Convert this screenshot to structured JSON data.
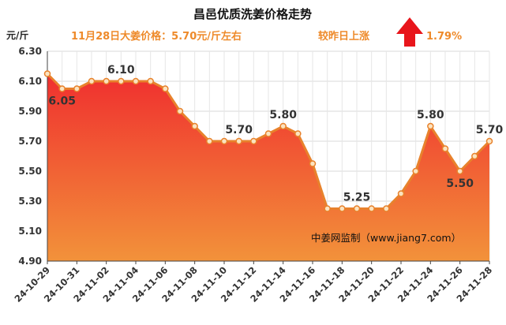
{
  "title": "昌邑优质洗姜价格走势",
  "subtitle": {
    "price_text": "11月28日大姜价格：5.70元/斤左右",
    "change_label": "较昨日上涨",
    "change_value": "1.79%"
  },
  "watermark": "中姜网监制（www.jiang7.com）",
  "colors": {
    "line": "#e8822c",
    "marker_fill": "#fbe3c0",
    "area_top": "#f02f2f",
    "area_bottom": "#f2923a",
    "info_text": "#ee8a2a",
    "arrow": "#e8151b"
  },
  "chart_data": {
    "type": "area",
    "ylabel": "元/斤",
    "ylim": [
      4.9,
      6.3
    ],
    "yticks": [
      "6.30",
      "6.10",
      "5.90",
      "5.70",
      "5.50",
      "5.30",
      "5.10",
      "4.90"
    ],
    "grid": true,
    "x": [
      "24-10-29",
      "24-10-30",
      "24-10-31",
      "24-11-01",
      "24-11-02",
      "24-11-03",
      "24-11-04",
      "24-11-05",
      "24-11-06",
      "24-11-07",
      "24-11-08",
      "24-11-09",
      "24-11-10",
      "24-11-11",
      "24-11-12",
      "24-11-13",
      "24-11-14",
      "24-11-15",
      "24-11-16",
      "24-11-17",
      "24-11-18",
      "24-11-19",
      "24-11-20",
      "24-11-21",
      "24-11-22",
      "24-11-23",
      "24-11-24",
      "24-11-25",
      "24-11-26",
      "24-11-27",
      "24-11-28"
    ],
    "xtick_labels": [
      "24-10-29",
      "24-10-31",
      "24-11-02",
      "24-11-04",
      "24-11-06",
      "24-11-08",
      "24-11-10",
      "24-11-12",
      "24-11-14",
      "24-11-16",
      "24-11-18",
      "24-11-20",
      "24-11-22",
      "24-11-24",
      "24-11-26",
      "24-11-28"
    ],
    "values": [
      6.15,
      6.05,
      6.05,
      6.1,
      6.1,
      6.1,
      6.1,
      6.1,
      6.05,
      5.9,
      5.8,
      5.7,
      5.7,
      5.7,
      5.7,
      5.75,
      5.8,
      5.75,
      5.55,
      5.25,
      5.25,
      5.25,
      5.25,
      5.25,
      5.35,
      5.5,
      5.8,
      5.65,
      5.5,
      5.6,
      5.7
    ],
    "data_labels": [
      {
        "index": 1,
        "text": "6.05",
        "pos": "below"
      },
      {
        "index": 5,
        "text": "6.10",
        "pos": "above"
      },
      {
        "index": 13,
        "text": "5.70",
        "pos": "above"
      },
      {
        "index": 16,
        "text": "5.80",
        "pos": "above"
      },
      {
        "index": 21,
        "text": "5.25",
        "pos": "above"
      },
      {
        "index": 26,
        "text": "5.80",
        "pos": "above"
      },
      {
        "index": 28,
        "text": "5.50",
        "pos": "below"
      },
      {
        "index": 30,
        "text": "5.70",
        "pos": "above"
      }
    ]
  }
}
